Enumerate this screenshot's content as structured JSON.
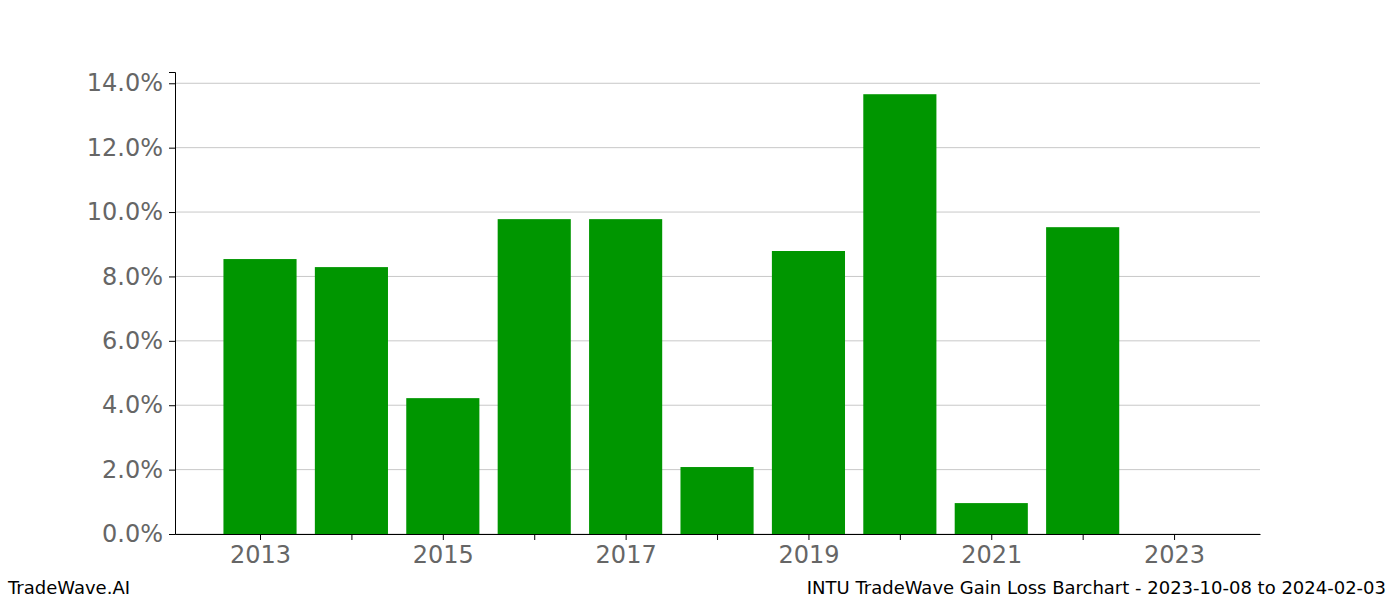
{
  "chart_data": {
    "type": "bar",
    "title": "INTU TradeWave Gain Loss Barchart - 2023-10-08 to 2024-02-03",
    "annotations": [
      "TradeWave.AI"
    ],
    "categories": [
      "2013",
      null,
      "2015",
      null,
      "2017",
      null,
      "2019",
      null,
      "2021",
      null,
      "2023"
    ],
    "values": [
      8.54,
      8.29,
      4.22,
      9.78,
      9.78,
      2.08,
      8.79,
      13.66,
      0.96,
      9.53,
      0
    ],
    "color": "#009600",
    "ylim": [
      0,
      14.35
    ],
    "yticks": [
      {
        "value": 0,
        "label": "0.0%"
      },
      {
        "value": 2,
        "label": "2.0%"
      },
      {
        "value": 4,
        "label": "4.0%"
      },
      {
        "value": 6,
        "label": "6.0%"
      },
      {
        "value": 8,
        "label": "8.0%"
      },
      {
        "value": 10,
        "label": "10.0%"
      },
      {
        "value": 12,
        "label": "12.0%"
      },
      {
        "value": 14,
        "label": "14.0%"
      }
    ],
    "grid": true
  }
}
